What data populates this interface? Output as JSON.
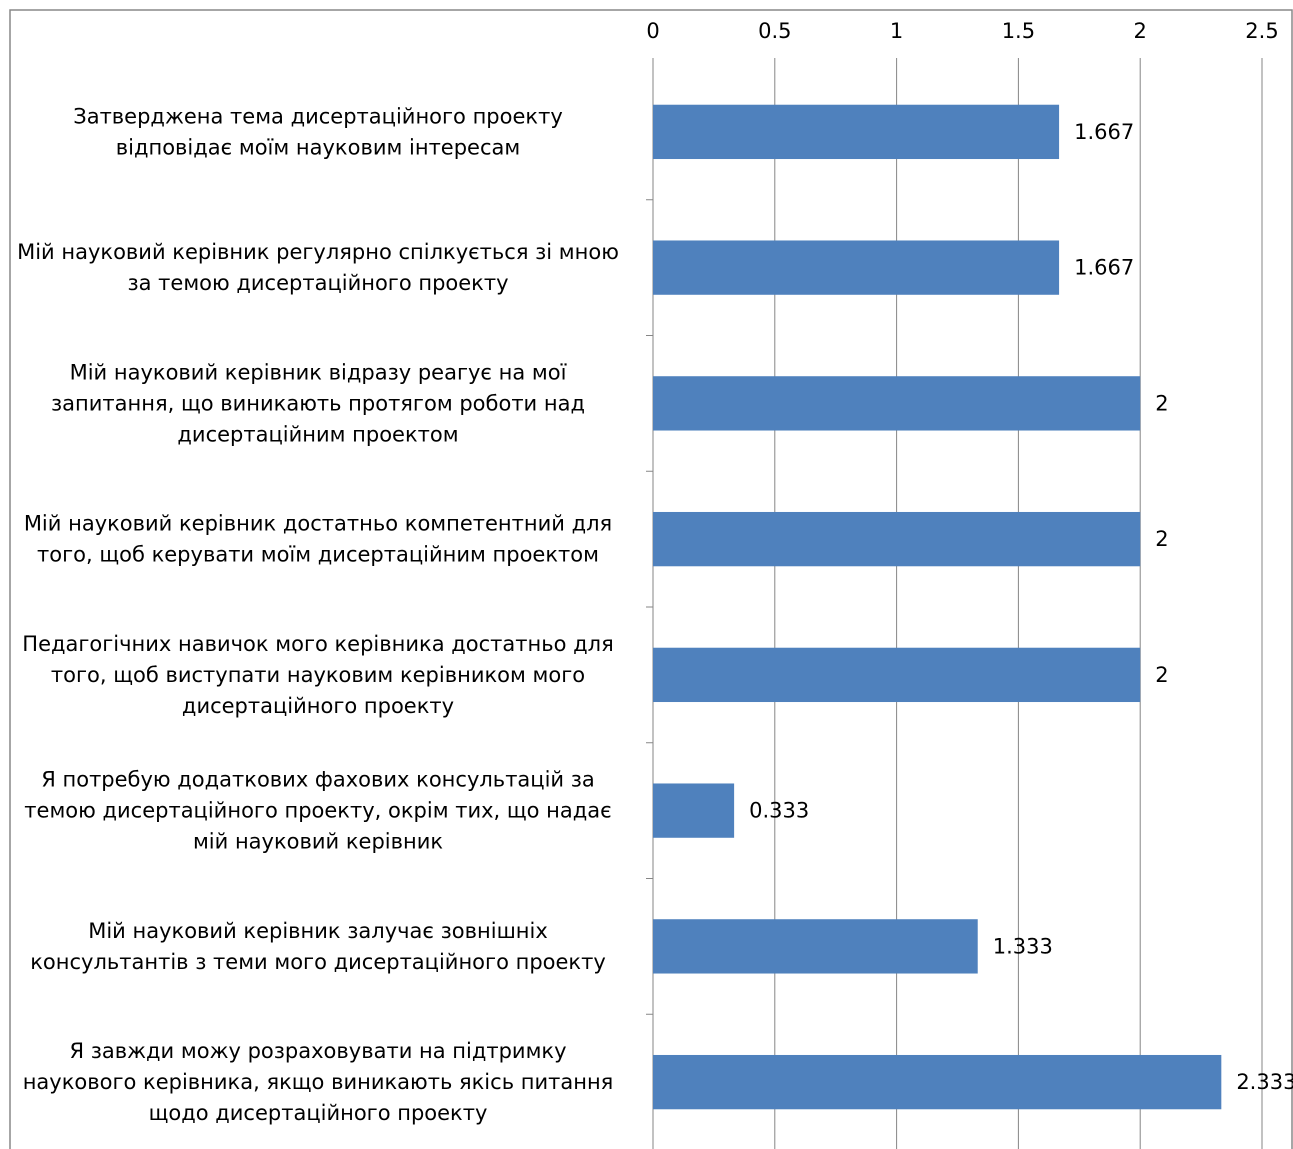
{
  "chart_data": {
    "type": "bar",
    "orientation": "horizontal",
    "xlim": [
      0,
      2.5
    ],
    "x_ticks": [
      "0",
      "0.5",
      "1",
      "1.5",
      "2",
      "2.5"
    ],
    "x_axis_position": "top",
    "grid": true,
    "legend": "none",
    "bar_color": "#4F81BD",
    "categories": [
      [
        "Затверджена тема дисертаційного проекту",
        "відповідає моїм науковим інтересам"
      ],
      [
        "Мій науковий керівник регулярно спілкується зі мною",
        "за темою дисертаційного проекту"
      ],
      [
        "Мій науковий керівник відразу реагує на мої",
        "запитання, що виникають протягом роботи над",
        "дисертаційним проектом"
      ],
      [
        "Мій науковий керівник достатньо компетентний для",
        "того, щоб керувати моїм дисертаційним проектом"
      ],
      [
        "Педагогічних навичок мого керівника достатньо для",
        "того, щоб виступати науковим керівником мого",
        "дисертаційного проекту"
      ],
      [
        "Я потребую додаткових фахових консультацій за",
        "темою дисертаційного проекту, окрім тих, що надає",
        "мій науковий керівник"
      ],
      [
        "Мій науковий керівник залучає зовнішніх",
        "консультантів з теми мого дисертаційного проекту"
      ],
      [
        "Я завжди можу розраховувати на підтримку",
        "наукового керівника, якщо виникають якісь питання",
        "щодо дисертаційного проекту"
      ]
    ],
    "values": [
      1.667,
      1.667,
      2,
      2,
      2,
      0.333,
      1.333,
      2.333
    ],
    "data_labels": [
      "1.667",
      "1.667",
      "2",
      "2",
      "2",
      "0.333",
      "1.333",
      "2.333"
    ]
  }
}
